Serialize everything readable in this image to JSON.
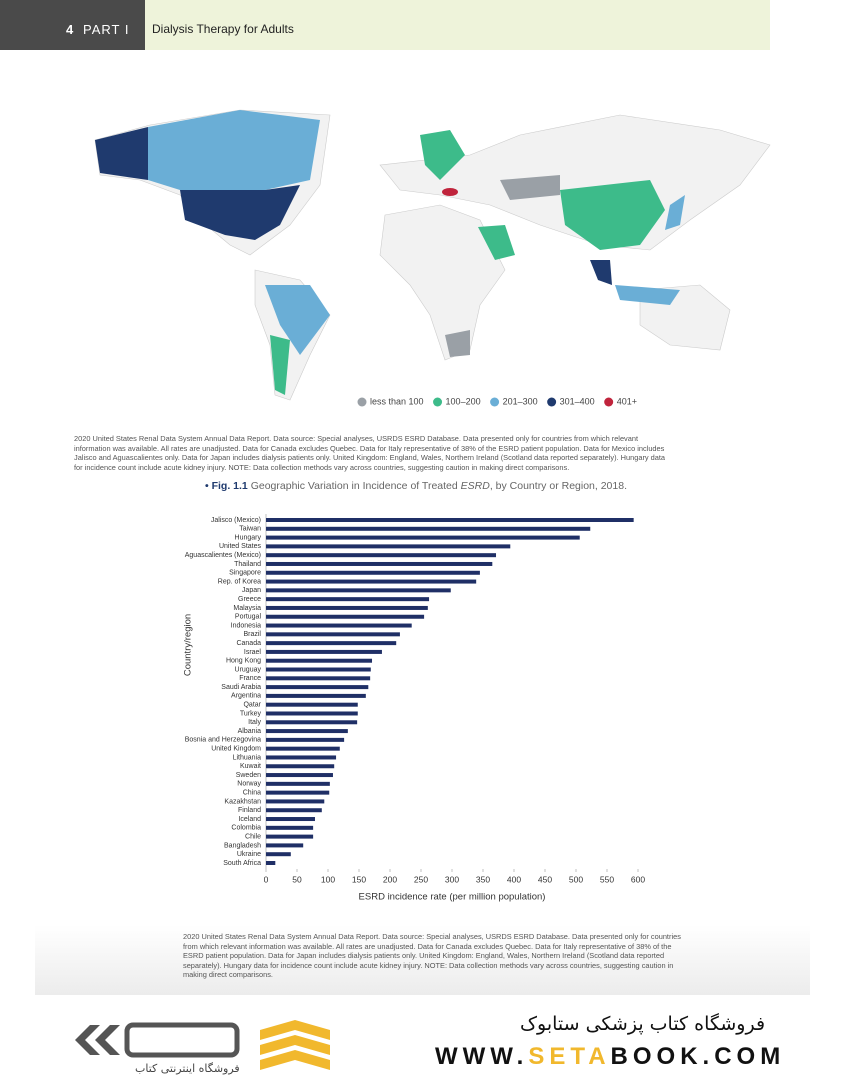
{
  "header": {
    "page_number": "4",
    "part": "PART I",
    "title": "Dialysis Therapy for Adults"
  },
  "map": {
    "legend": [
      {
        "label": "less than 100",
        "color": "#9aa0a6"
      },
      {
        "label": "100–200",
        "color": "#3dbb8a"
      },
      {
        "label": "201–300",
        "color": "#6aaed6"
      },
      {
        "label": "301–400",
        "color": "#1f3a6e"
      },
      {
        "label": "401+",
        "color": "#c0243c"
      }
    ],
    "note": "2020 United States Renal Data System Annual Data Report. Data source: Special analyses, USRDS ESRD Database. Data presented only for countries from which relevant information was available. All rates are unadjusted. Data for Canada excludes Quebec. Data for Italy representative of 38% of the ESRD patient population. Data for Mexico includes Jalisco and Aguascalientes only. Data for Japan includes dialysis patients only. United Kingdom: England, Wales, Northern Ireland (Scotland data reported separately). Hungary data for incidence count include acute kidney injury. NOTE: Data collection methods vary across countries, suggesting caution in making direct comparisons."
  },
  "figure": {
    "number": "Fig. 1.1",
    "caption_before": "Geographic Variation in Incidence of Treated ",
    "caption_italic": "ESRD",
    "caption_after": ", by Country or Region, 2018."
  },
  "chart_data": {
    "type": "bar",
    "orientation": "horizontal",
    "color": "#1f2f66",
    "x_label": "ESRD incidence rate (per million population)",
    "y_label": "Country/region",
    "categories": [
      "Jalisco (Mexico)",
      "Taiwan",
      "Hungary",
      "United States",
      "Aguascalientes (Mexico)",
      "Thailand",
      "Singapore",
      "Rep. of Korea",
      "Japan",
      "Greece",
      "Malaysia",
      "Portugal",
      "Indonesia",
      "Brazil",
      "Canada",
      "Israel",
      "Hong Kong",
      "Uruguay",
      "France",
      "Saudi Arabia",
      "Argentina",
      "Qatar",
      "Turkey",
      "Italy",
      "Albania",
      "Bosnia and Herzegovina",
      "United Kingdom",
      "Lithuania",
      "Kuwait",
      "Sweden",
      "Norway",
      "China",
      "Kazakhstan",
      "Finland",
      "Iceland",
      "Colombia",
      "Chile",
      "Bangladesh",
      "Ukraine",
      "South Africa"
    ],
    "values": [
      593,
      523,
      506,
      394,
      371,
      365,
      345,
      339,
      298,
      263,
      261,
      255,
      235,
      216,
      210,
      187,
      171,
      169,
      168,
      165,
      161,
      148,
      148,
      147,
      132,
      126,
      119,
      113,
      110,
      108,
      103,
      102,
      94,
      90,
      79,
      76,
      76,
      60,
      40,
      15
    ],
    "xlim": [
      0,
      600
    ],
    "xticks": [
      0,
      50,
      100,
      150,
      200,
      250,
      300,
      350,
      400,
      450,
      500,
      550,
      600
    ]
  },
  "chart_note": "2020 United States Renal Data System Annual Data Report. Data source: Special analyses, USRDS ESRD Database. Data presented only for countries from which relevant information was available. All rates are unadjusted. Data for Canada excludes Quebec. Data for Italy representative of 38% of the ESRD patient population. Data for Japan includes dialysis patients only. United Kingdom: England, Wales, Northern Ireland (Scotland data reported separately). Hungary data for incidence count include acute kidney injury. NOTE: Data collection methods vary across countries, suggesting caution in making direct comparisons.",
  "footer": {
    "logo_text": "فروشگاه اینترنتی کتاب",
    "shop_name": "فروشگاه کتاب پزشکی ستابوک",
    "url_start": "WWW.",
    "url_highlight": "SETA",
    "url_end": "BOOK.COM"
  }
}
